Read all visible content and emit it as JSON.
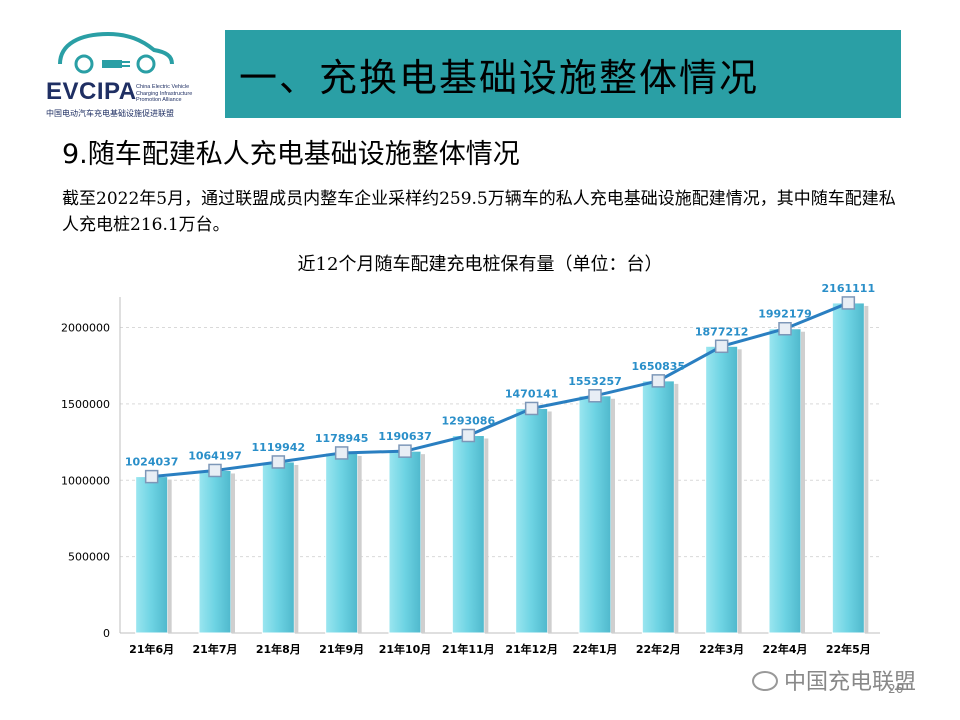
{
  "logo": {
    "text": "EVCIPA",
    "subtitle": "China Electric Vehicle Charging Infrastructure Promotion Alliance",
    "cn_name": "中国电动汽车充电基础设施促进联盟",
    "color": "#1f2f63",
    "accent": "#2a9fa5"
  },
  "header": {
    "title": "一、充换电基础设施整体情况",
    "banner_color": "#2a9fa5"
  },
  "section": {
    "title": "9.随车配建私人充电基础设施整体情况",
    "paragraph": "截至2022年5月，通过联盟成员内整车企业采样约259.5万辆车的私人充电基础设施配建情况，其中随车配建私人充电桩216.1万台。"
  },
  "chart_data": {
    "type": "bar",
    "title": "近12个月随车配建充电桩保有量（单位：台）",
    "categories": [
      "21年6月",
      "21年7月",
      "21年8月",
      "21年9月",
      "21年10月",
      "21年11月",
      "21年12月",
      "22年1月",
      "22年2月",
      "22年3月",
      "22年4月",
      "22年5月"
    ],
    "series": [
      {
        "type": "bar",
        "values": [
          1024037,
          1064197,
          1119942,
          1178945,
          1190637,
          1293086,
          1470141,
          1553257,
          1650835,
          1877212,
          1992179,
          2161111
        ],
        "color": "#6dd3e3"
      },
      {
        "type": "line",
        "values": [
          1024037,
          1064197,
          1119942,
          1178945,
          1190637,
          1293086,
          1470141,
          1553257,
          1650835,
          1877212,
          1992179,
          2161111
        ],
        "color": "#2a7fc1"
      }
    ],
    "data_labels": [
      "1024037",
      "1064197",
      "1119942",
      "1178945",
      "1190637",
      "1293086",
      "1470141",
      "1553257",
      "1650835",
      "1877212",
      "1992179",
      "2161111"
    ],
    "label_color": "#2a8fc9",
    "y_ticks": [
      "0",
      "500000",
      "1000000",
      "1500000",
      "2000000"
    ],
    "ylim": [
      0,
      2200000
    ],
    "grid": true,
    "legend": "none"
  },
  "footer": {
    "watermark": "中国充电联盟",
    "page": "26"
  }
}
